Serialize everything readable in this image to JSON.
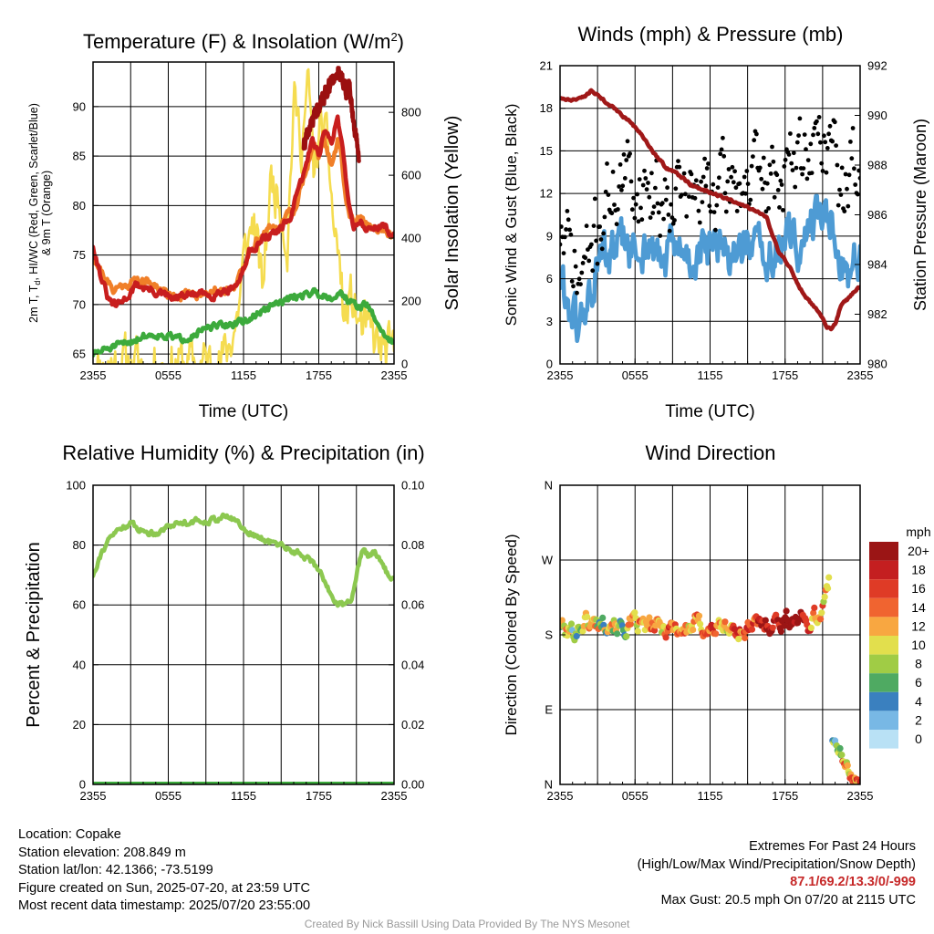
{
  "time_ticks": [
    "2355",
    "0555",
    "1155",
    "1755",
    "2355"
  ],
  "colors": {
    "temp": "#c81e1e",
    "temp_9m": "#f07f28",
    "dewpoint": "#3caa3c",
    "heat_index": "#9b1010",
    "insolation": "#f5dc50",
    "wind": "#4e9bd4",
    "gust": "#000000",
    "pressure": "#a01818",
    "humidity": "#8cc850",
    "precip": "#3caa3c"
  },
  "chart_data": [
    {
      "type": "line",
      "title": "Temperature (F) & Insolation (W/m²)",
      "title_main": "Temperature (F) & Insolation (W/m",
      "title_sup": "2",
      "title_end": ")",
      "xlabel": "Time (UTC)",
      "ylabel": "2m T, T_d, HI/WC (Red, Green, Scarlet/Blue) & 9m T (Orange)",
      "ylabel_line1": "2m T, T",
      "ylabel_sub": "d",
      "ylabel_line1_rest": ", HI/WC (Red, Green, Scarlet/Blue)",
      "ylabel_line2": "& 9m T (Orange)",
      "y2label": "Solar Insolation (Yellow)",
      "x_range_hours": [
        0,
        24
      ],
      "ylim": [
        64,
        94.5
      ],
      "y_ticks": [
        65,
        70,
        75,
        80,
        85,
        90
      ],
      "y2lim": [
        0,
        960
      ],
      "y2_ticks": [
        0,
        200,
        400,
        600,
        800
      ],
      "grid": true,
      "series": [
        {
          "key": "insolation",
          "axis": "y2",
          "noise": 70,
          "seed": 11,
          "x": [
            0,
            2,
            4,
            6,
            8,
            9.2,
            10.5,
            11.5,
            12.0,
            12.8,
            13.5,
            14.2,
            15.0,
            15.5,
            16.0,
            16.6,
            17.2,
            17.6,
            18.2,
            18.8,
            19.2,
            19.6,
            20.0,
            20.6,
            21.2,
            22.0,
            23.0,
            24.0
          ],
          "y": [
            0,
            0,
            0,
            0,
            0,
            0,
            20,
            150,
            320,
            470,
            230,
            590,
            520,
            380,
            840,
            710,
            880,
            600,
            760,
            650,
            430,
            350,
            140,
            200,
            130,
            90,
            45,
            20
          ]
        },
        {
          "key": "temp_9m",
          "noise": 0.4,
          "seed": 21,
          "x": [
            0,
            0.6,
            1.5,
            2.5,
            3.5,
            5.0,
            6.0,
            7.0,
            8.5,
            9.5,
            10.5,
            11.5,
            12.0,
            12.5,
            13.0,
            14.0,
            14.8,
            15.5,
            16.2,
            17.0,
            17.6,
            18.0,
            18.4,
            19.0,
            19.5,
            19.8,
            20.2,
            20.5,
            21.0,
            22.0,
            23.0,
            24.0
          ],
          "y": [
            75,
            73.5,
            71.5,
            72,
            72.5,
            72,
            71,
            71,
            71,
            71.5,
            71.5,
            72.2,
            73.5,
            75.5,
            76.5,
            77.5,
            78,
            79,
            80,
            84,
            86,
            85,
            87,
            84,
            86.5,
            85,
            80,
            79,
            78.5,
            78,
            77.5,
            77
          ]
        },
        {
          "key": "temp",
          "noise": 0.35,
          "seed": 31,
          "x": [
            0,
            0.6,
            1.2,
            1.8,
            2.5,
            3.5,
            4.5,
            5.5,
            6.5,
            7.5,
            8.5,
            9.5,
            10.5,
            11.5,
            12.0,
            12.5,
            13.0,
            14.0,
            15.0,
            15.8,
            16.5,
            17.0,
            17.5,
            18.0,
            18.5,
            19.0,
            19.5,
            20.0,
            20.4,
            20.8,
            21.2,
            22.0,
            23.0,
            24.0
          ],
          "y": [
            76,
            73,
            70.5,
            69.8,
            70.5,
            72,
            71.5,
            71,
            70.5,
            71,
            71,
            71,
            71.5,
            72,
            73.5,
            75.5,
            76,
            77,
            77.5,
            79,
            82,
            84,
            87,
            85,
            88,
            86,
            89,
            85,
            80,
            78,
            78.5,
            77.5,
            78,
            77
          ]
        },
        {
          "key": "heat_index",
          "noise": 0.5,
          "seed": 41,
          "x": [
            16.8,
            17.2,
            17.6,
            18.0,
            18.4,
            18.8,
            19.2,
            19.6,
            20.0,
            20.2,
            20.4,
            20.6,
            20.8,
            21.0,
            21.2
          ],
          "y": [
            86,
            87.5,
            89,
            90,
            91,
            92,
            93,
            93.5,
            92.5,
            91,
            93,
            90,
            88,
            87,
            85
          ]
        },
        {
          "key": "dewpoint",
          "noise": 0.3,
          "seed": 51,
          "x": [
            0,
            0.5,
            1,
            2,
            3,
            4,
            5,
            6,
            7,
            8,
            9,
            10,
            11,
            11.8,
            12.5,
            13.0,
            13.8,
            14.5,
            15.2,
            16.0,
            16.8,
            17.5,
            18.2,
            19.0,
            19.8,
            20.3,
            20.8,
            21.2,
            21.8,
            22.5,
            23.2,
            24.0
          ],
          "y": [
            65,
            65.2,
            65.5,
            65.8,
            66.3,
            66.8,
            67,
            66.8,
            66.5,
            67,
            67.5,
            67.8,
            68,
            68.2,
            68.5,
            69,
            69.5,
            70,
            70.3,
            70.8,
            71,
            71.3,
            71,
            70.8,
            71.2,
            70.5,
            70,
            69.8,
            70,
            68.5,
            67,
            66
          ]
        }
      ]
    },
    {
      "type": "line",
      "title": "Winds (mph) & Pressure (mb)",
      "xlabel": "Time (UTC)",
      "ylabel": "Sonic Wind & Gust (Blue, Black)",
      "y2label": "Station Pressure (Maroon)",
      "x_range_hours": [
        0,
        24
      ],
      "ylim": [
        0,
        21
      ],
      "y_ticks": [
        0,
        3,
        6,
        9,
        12,
        15,
        18,
        21
      ],
      "y2lim": [
        980,
        992
      ],
      "y2_ticks": [
        980,
        982,
        984,
        986,
        988,
        990,
        992
      ],
      "grid": true,
      "series": [
        {
          "key": "wind",
          "style": "line",
          "noise": 1.4,
          "seed": 61,
          "x": [
            0,
            0.6,
            1.0,
            1.5,
            2.0,
            2.5,
            3.0,
            3.5,
            4.0,
            5.0,
            6.0,
            7.0,
            8.0,
            9.0,
            10.0,
            11.0,
            12.0,
            13.0,
            14.0,
            15.0,
            16.0,
            17.0,
            18.0,
            19.0,
            20.0,
            20.8,
            21.5,
            22.0,
            22.5,
            23.0,
            23.5,
            24.0
          ],
          "y": [
            6,
            4.5,
            3.5,
            2,
            4,
            5,
            6.5,
            7.5,
            7.5,
            8.5,
            7.5,
            8.5,
            7,
            8,
            7.5,
            7.5,
            8,
            7.5,
            8,
            8.5,
            7.5,
            7.5,
            8.5,
            8.5,
            9.5,
            10.5,
            11,
            9,
            7,
            6.5,
            7.5,
            7.5
          ]
        },
        {
          "key": "gust",
          "style": "dots",
          "noise": 2.3,
          "seed": 71,
          "x": [
            0,
            0.6,
            1.0,
            1.5,
            2.0,
            2.5,
            3.0,
            3.5,
            4.0,
            5.0,
            6.0,
            7.0,
            8.0,
            9.0,
            10.0,
            11.0,
            12.0,
            13.0,
            14.0,
            15.0,
            16.0,
            17.0,
            18.0,
            19.0,
            20.0,
            20.8,
            21.5,
            22.0,
            22.5,
            23.0,
            23.5,
            24.0
          ],
          "y": [
            9.5,
            8,
            7,
            5.5,
            7,
            8,
            9.5,
            11,
            12,
            13,
            12.5,
            13,
            11.5,
            13,
            12,
            11.5,
            12.5,
            12,
            13,
            13,
            12.5,
            13,
            13.5,
            14,
            15.5,
            15.5,
            16,
            14.5,
            12,
            12.5,
            14.5,
            15
          ]
        },
        {
          "key": "pressure",
          "axis": "y2",
          "style": "line",
          "noise": 0.04,
          "seed": 81,
          "x": [
            0,
            1,
            2,
            2.5,
            3.5,
            4.5,
            5.5,
            6.5,
            7.5,
            8.5,
            9.5,
            10.5,
            11.5,
            12.5,
            13.5,
            14.5,
            15.5,
            16.5,
            17.0,
            17.5,
            18.0,
            18.5,
            19.0,
            19.5,
            20.0,
            20.5,
            21.0,
            21.3,
            21.7,
            22.0,
            22.5,
            23.0,
            23.5,
            24.0
          ],
          "y": [
            990.7,
            990.6,
            990.8,
            991.0,
            990.6,
            990.2,
            989.8,
            989.2,
            988.5,
            987.9,
            987.6,
            987.2,
            987.0,
            986.8,
            986.6,
            986.4,
            986.2,
            985.9,
            985.2,
            984.5,
            984.2,
            983.8,
            983.2,
            982.8,
            982.5,
            982.2,
            981.9,
            981.5,
            981.4,
            981.6,
            982.4,
            982.6,
            982.9,
            983.1
          ]
        }
      ]
    },
    {
      "type": "line",
      "title": "Relative Humidity (%) & Precipitation (in)",
      "xlabel": "",
      "ylabel": "Percent & Precipitation",
      "x_range_hours": [
        0,
        24
      ],
      "ylim": [
        0,
        100
      ],
      "y_ticks": [
        0,
        20,
        40,
        60,
        80,
        100
      ],
      "y2lim": [
        0,
        0.1
      ],
      "y2_ticks": [
        "0.00",
        "0.02",
        "0.04",
        "0.06",
        "0.08",
        "0.10"
      ],
      "grid": true,
      "series": [
        {
          "key": "humidity",
          "noise": 0.8,
          "seed": 91,
          "x": [
            0,
            0.5,
            1,
            1.5,
            2,
            2.5,
            3,
            3.5,
            4,
            5,
            6,
            7,
            8,
            9,
            10,
            10.5,
            11,
            11.5,
            12,
            13,
            14,
            15,
            16,
            17,
            18,
            18.5,
            19,
            19.5,
            20,
            20.3,
            20.6,
            21,
            21.5,
            22,
            22.5,
            23,
            23.5,
            24
          ],
          "y": [
            70,
            76,
            80,
            83,
            85,
            86.5,
            87,
            86,
            84.5,
            84,
            86.5,
            87.5,
            88,
            88,
            89,
            89.5,
            89,
            88,
            85.5,
            83,
            81,
            80,
            78,
            76,
            72,
            68,
            63,
            60.5,
            60,
            60.5,
            62.5,
            70,
            79,
            76,
            77.5,
            75,
            70,
            68
          ]
        },
        {
          "key": "precip",
          "axis": "y2",
          "noise": 0,
          "seed": 1,
          "x": [
            0,
            24
          ],
          "y": [
            0,
            0
          ]
        }
      ]
    },
    {
      "type": "scatter",
      "title": "Wind Direction",
      "xlabel": "",
      "ylabel": "Direction (Colored By Speed)",
      "x_range_hours": [
        0,
        24
      ],
      "ylim": [
        0,
        360
      ],
      "y_ticks": [
        {
          "v": 0,
          "label": "N"
        },
        {
          "v": 90,
          "label": "E"
        },
        {
          "v": 180,
          "label": "S"
        },
        {
          "v": 270,
          "label": "W"
        },
        {
          "v": 360,
          "label": "N"
        }
      ],
      "grid": true,
      "legend_title": "mph",
      "legend_placement": "right",
      "legend": [
        {
          "label": "20+",
          "color": "#9b1515"
        },
        {
          "label": "18",
          "color": "#c41f20"
        },
        {
          "label": "16",
          "color": "#df3b26"
        },
        {
          "label": "14",
          "color": "#f06430"
        },
        {
          "label": "12",
          "color": "#f8a741"
        },
        {
          "label": "10",
          "color": "#e2df4d"
        },
        {
          "label": "8",
          "color": "#a0cc45"
        },
        {
          "label": "6",
          "color": "#4faa62"
        },
        {
          "label": "4",
          "color": "#3a80bf"
        },
        {
          "label": "2",
          "color": "#78b8e5"
        },
        {
          "label": "0",
          "color": "#b9e1f5"
        }
      ],
      "series": [
        {
          "key": "direction",
          "noise": 9,
          "seed": 101,
          "x": [
            0,
            0.5,
            1,
            1.5,
            2,
            2.5,
            3,
            4,
            5,
            6,
            7,
            8,
            9,
            10,
            11,
            12,
            13,
            14,
            15,
            16,
            17,
            18,
            19,
            19.8,
            20.3,
            20.6,
            21,
            21.5
          ],
          "y": [
            195,
            182,
            185,
            188,
            198,
            193,
            195,
            198,
            187,
            192,
            190,
            188,
            190,
            185,
            194,
            186,
            190,
            184,
            186,
            192,
            195,
            198,
            200,
            193,
            203,
            200,
            215,
            240
          ],
          "speed": [
            5,
            3,
            4,
            5,
            4,
            5,
            4,
            6,
            7,
            7,
            6,
            7,
            6,
            5,
            6,
            7,
            6,
            6,
            7,
            8,
            8,
            9,
            10,
            12,
            11,
            9,
            7,
            6
          ]
        },
        {
          "key": "direction_north",
          "noise": 5,
          "seed": 111,
          "x": [
            21.8,
            22.3,
            22.8,
            23.3,
            23.7,
            24
          ],
          "y": [
            55,
            40,
            25,
            12,
            5,
            3
          ],
          "speed": [
            3,
            4,
            6,
            6,
            7,
            7
          ]
        }
      ]
    }
  ],
  "footer": {
    "location": "Location: Copake",
    "elevation": "Station elevation: 208.849 m",
    "latlon": "Station lat/lon: 42.1366; -73.5199",
    "created": "Figure created on Sun, 2025-07-20, at 23:59 UTC",
    "recent": "Most recent data timestamp: 2025/07/20 23:55:00",
    "extremes_title": "Extremes For Past 24 Hours",
    "extremes_sub": "(High/Low/Max Wind/Precipitation/Snow Depth)",
    "extremes_values": "87.1/69.2/13.3/0/-999",
    "max_gust": "Max Gust: 20.5 mph On 07/20 at 2115 UTC"
  },
  "credit": "Created By Nick Bassill Using Data Provided By The NYS Mesonet"
}
